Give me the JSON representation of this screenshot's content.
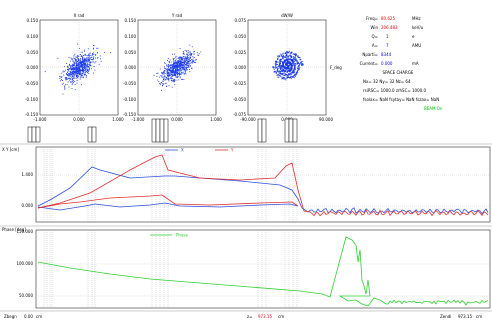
{
  "phase_space": {
    "plots": [
      {
        "title": "X rad",
        "y_ticks": [
          "0.150",
          "0.100",
          "0.050",
          "0.000",
          "-0.050",
          "-0.100",
          "-0.150"
        ],
        "x_ticks": [
          "-1.000",
          "0.000",
          "1.000"
        ]
      },
      {
        "title": "Y rad",
        "y_ticks": [
          "0.150",
          "0.100",
          "0.050",
          "0.000",
          "-0.050",
          "-0.100",
          "-0.150"
        ],
        "x_ticks": [
          "-1.000",
          "0.000",
          "1.000"
        ]
      },
      {
        "title": "dW/W",
        "y_ticks": [
          "0.075",
          "0.050",
          "0.025",
          "0.000",
          "-0.025",
          "-0.050",
          "-0.075"
        ],
        "x_ticks": [
          "-90.000",
          "0.000",
          "90.000"
        ],
        "axis_label": "F_deg"
      }
    ]
  },
  "params": {
    "frequency": {
      "label": "Freq=",
      "value": "80.625",
      "unit": "MHz"
    },
    "energy": {
      "label": "Win",
      "value": "206.483",
      "unit": "keV/u"
    },
    "charge": {
      "label": "Q=",
      "value": "1",
      "unit": "e"
    },
    "mass": {
      "label": "A=",
      "value": "7",
      "unit": "AMU"
    },
    "particles": {
      "label": "Nparti=",
      "value": "8344"
    },
    "current": {
      "label": "Current=",
      "value": "0.000",
      "unit": "mA"
    },
    "space_charge_title": "SPACE CHARGE",
    "grid_line": "Nx= 32  Ny= 32  Nz= 64",
    "rsc_line": "rsiRSC=  1000.0   zrhSC=  1000.0",
    "lines_line": "fsolax=  NaN  fsytay=  NaN  fszax=  NaN",
    "status": "BEAM On"
  },
  "envelope": {
    "ylabel": "X Y [cm]",
    "y_ticks": [
      "1.400",
      "0.000"
    ],
    "legend": [
      {
        "name": "X",
        "color": "#3050e0"
      },
      {
        "name": "Y",
        "color": "#e03030"
      }
    ]
  },
  "phase_plot": {
    "ylabel": "Phase [deg]",
    "y_ticks": [
      "150.000",
      "100.000",
      "50.000"
    ],
    "legend_label": "Phase",
    "color": "#30d030"
  },
  "footer": {
    "start_label": "Zbegn",
    "start_value": "0.00",
    "start_unit": "cm",
    "pos_label": "z=",
    "pos_value": "973.15",
    "pos_unit": "cm",
    "end_label": "Zendi",
    "end_value": "973.15",
    "end_unit": "cm"
  }
}
